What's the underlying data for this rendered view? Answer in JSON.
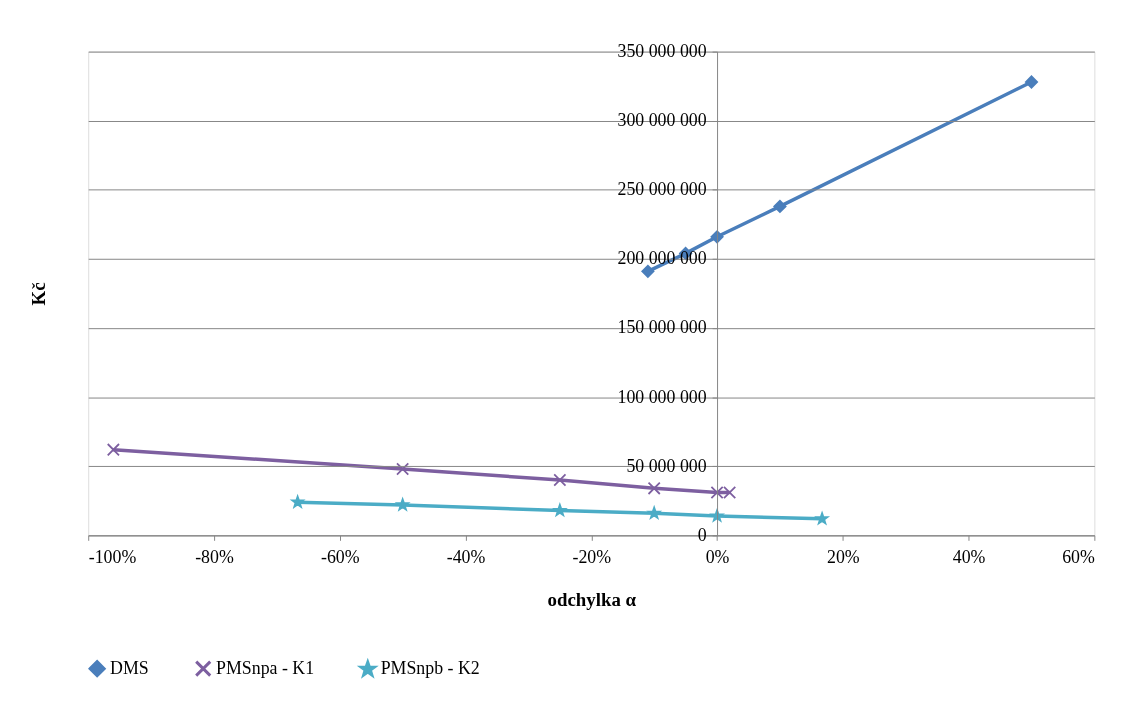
{
  "chart_data": {
    "type": "line",
    "xlabel": "odchylka α",
    "ylabel": "Kč",
    "series": [
      {
        "name": "DMS",
        "color": "#4a7ebb",
        "marker": "diamond",
        "x": [
          -11,
          -5,
          0,
          10,
          50
        ],
        "values": [
          191000000,
          204000000,
          216000000,
          238000000,
          328000000
        ]
      },
      {
        "name": "PMSnpa - K1",
        "color": "#7d5fa0",
        "marker": "cross",
        "x": [
          -96,
          -50,
          -25,
          -10,
          0,
          2
        ],
        "values": [
          62000000,
          48000000,
          40000000,
          34000000,
          31000000,
          31000000
        ]
      },
      {
        "name": "PMSnpb - K2",
        "color": "#4bacc6",
        "marker": "star",
        "x": [
          -66.7,
          -50,
          -25,
          -10,
          0,
          16.7
        ],
        "values": [
          24000000,
          22000000,
          18000000,
          16000000,
          14000000,
          12000000
        ]
      }
    ],
    "xlim": [
      -100,
      60
    ],
    "xticks": [
      {
        "value": -100,
        "label": "-100%"
      },
      {
        "value": -80,
        "label": "-80%"
      },
      {
        "value": -60,
        "label": "-60%"
      },
      {
        "value": -40,
        "label": "-40%"
      },
      {
        "value": -20,
        "label": "-20%"
      },
      {
        "value": 0,
        "label": "0%"
      },
      {
        "value": 20,
        "label": "20%"
      },
      {
        "value": 40,
        "label": "40%"
      },
      {
        "value": 60,
        "label": "60%"
      }
    ],
    "ylim": [
      0,
      350000000
    ],
    "yticks": [
      0,
      {
        "value": 50000000,
        "label": "50 000 000"
      },
      {
        "value": 100000000,
        "label": "100 000 000"
      },
      {
        "value": 150000000,
        "label": "150 000 000"
      },
      {
        "value": 200000000,
        "label": "200 000 000"
      },
      {
        "value": 250000000,
        "label": "250 000 000"
      },
      {
        "value": 300000000,
        "label": "300 000 000"
      },
      {
        "value": 350000000,
        "label": "350 000 000"
      }
    ],
    "grid": "y",
    "legend": "bottom",
    "line_style": "solid"
  }
}
